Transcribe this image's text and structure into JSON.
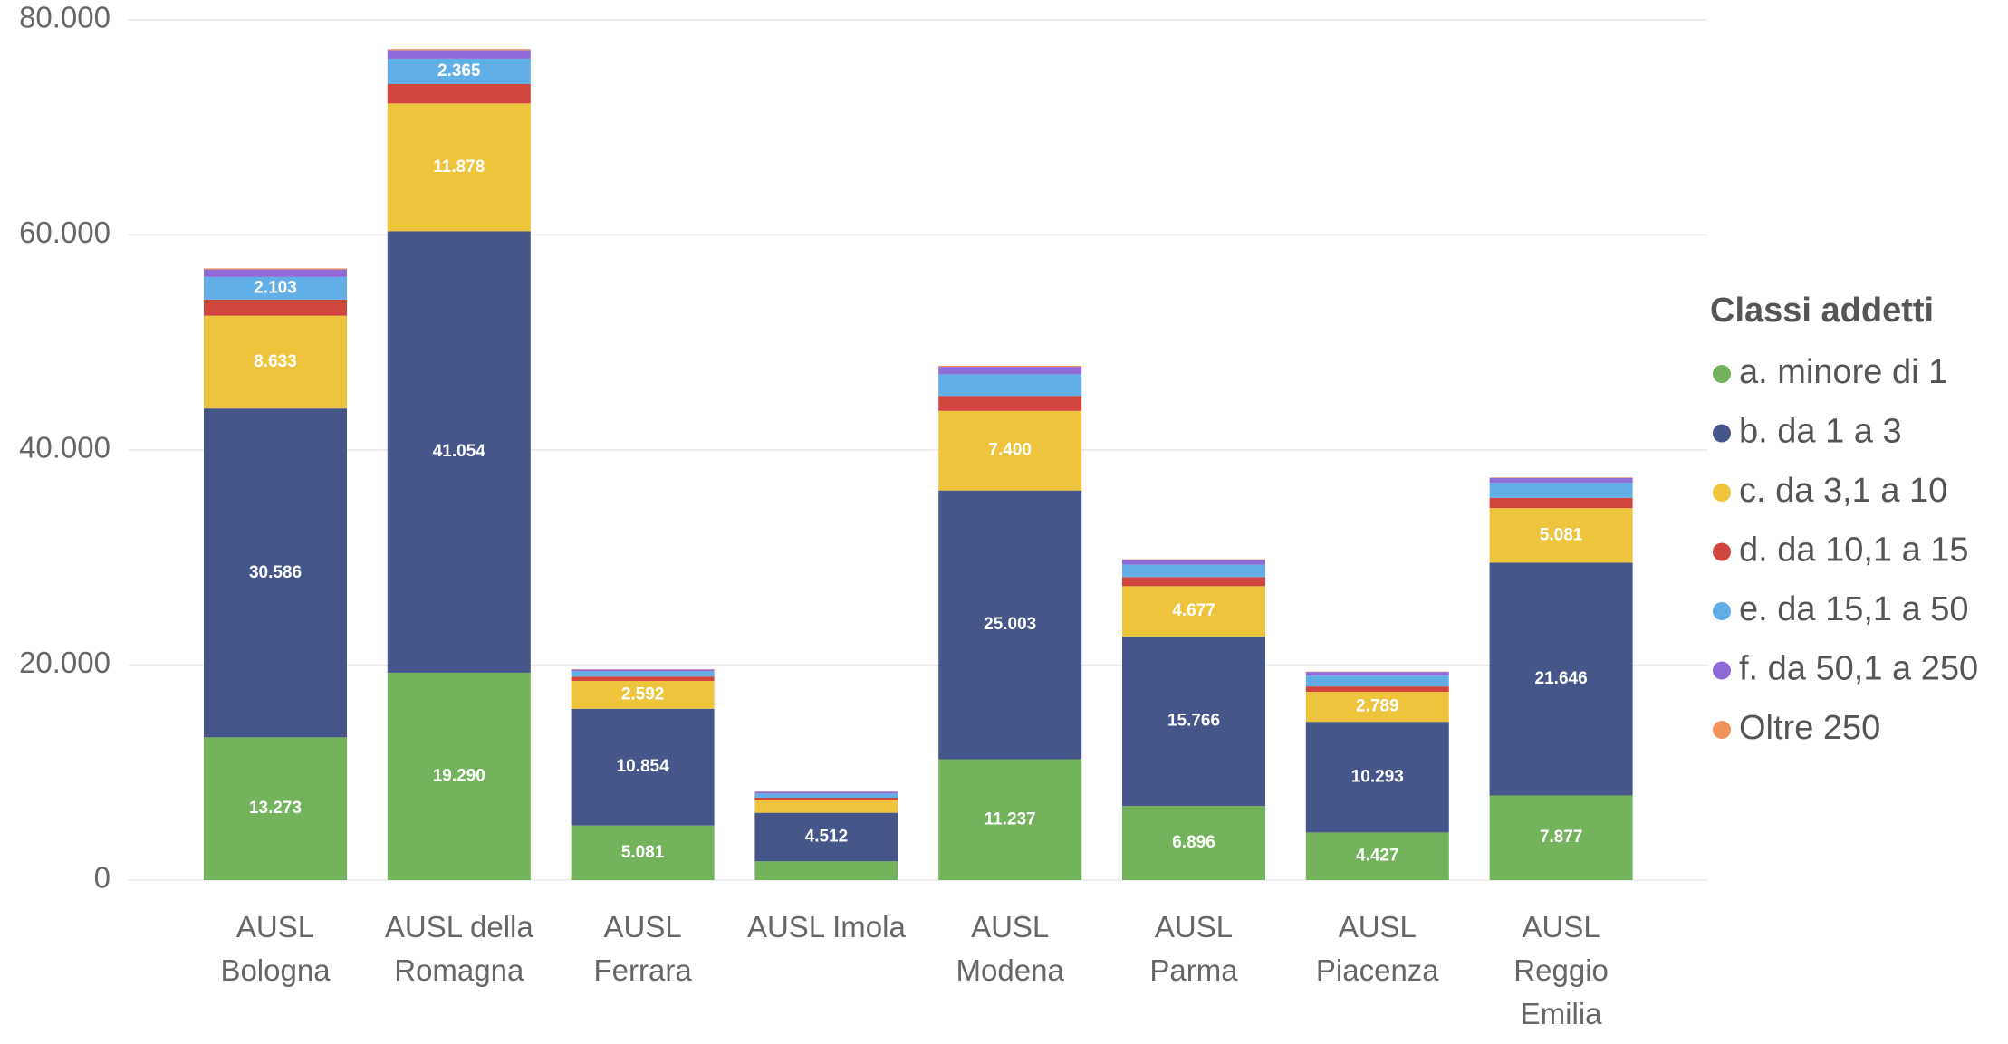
{
  "chart_data": {
    "type": "stacked_bar",
    "categories": [
      "AUSL\nBologna",
      "AUSL della\nRomagna",
      "AUSL\nFerrara",
      "AUSL Imola",
      "AUSL\nModena",
      "AUSL\nParma",
      "AUSL\nPiacenza",
      "AUSL\nReggio\nEmilia"
    ],
    "legend_title": "Classi addetti",
    "legend_position": "right",
    "grid": true,
    "ylim": [
      0,
      80000
    ],
    "yticks": [
      0,
      {
        "value": 20000,
        "label": "20.000"
      },
      {
        "value": 40000,
        "label": "40.000"
      },
      {
        "value": 60000,
        "label": "60.000"
      },
      {
        "value": 80000,
        "label": "80.000"
      }
    ],
    "series": [
      {
        "name": "a. minore di 1",
        "color": "#72b35b",
        "values": [
          13273,
          19290,
          5081,
          1750,
          11237,
          6896,
          4427,
          7877
        ],
        "value_labels": [
          "13.273",
          "19.290",
          "5.081",
          null,
          "11.237",
          "6.896",
          "4.427",
          "7.877"
        ]
      },
      {
        "name": "b. da 1 a 3",
        "color": "#46568a",
        "values": [
          30586,
          41054,
          10854,
          4512,
          25003,
          15766,
          10293,
          21646
        ],
        "value_labels": [
          "30.586",
          "41.054",
          "10.854",
          "4.512",
          "25.003",
          "15.766",
          "10.293",
          "21.646"
        ]
      },
      {
        "name": "c. da 3,1 a 10",
        "color": "#edc43c",
        "values": [
          8633,
          11878,
          2592,
          1200,
          7400,
          4677,
          2789,
          5081
        ],
        "value_labels": [
          "8.633",
          "11.878",
          "2.592",
          null,
          "7.400",
          "4.677",
          "2.789",
          "5.081"
        ]
      },
      {
        "name": "d. da 10,1 a 15",
        "color": "#d0453d",
        "values": [
          1500,
          1800,
          400,
          200,
          1400,
          850,
          500,
          950
        ]
      },
      {
        "name": "e. da 15,1 a 50",
        "color": "#62aee6",
        "values": [
          2103,
          2365,
          500,
          400,
          2000,
          1150,
          1000,
          1400
        ],
        "value_labels": [
          "2.103",
          "2.365",
          null,
          null,
          null,
          null,
          null,
          null
        ]
      },
      {
        "name": "f. da 50,1 a 250",
        "color": "#8e6bd6",
        "values": [
          700,
          800,
          150,
          150,
          700,
          450,
          350,
          450
        ]
      },
      {
        "name": "Oltre 250",
        "color": "#f0935a",
        "values": [
          100,
          100,
          30,
          20,
          100,
          50,
          40,
          50
        ]
      }
    ]
  }
}
